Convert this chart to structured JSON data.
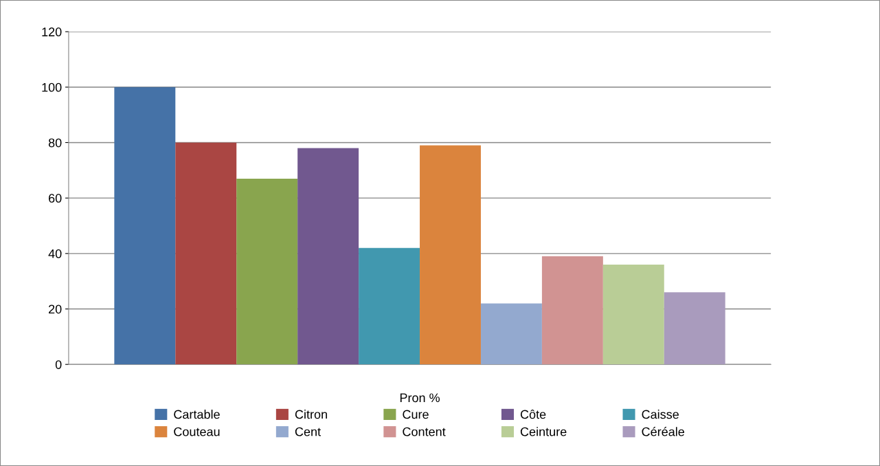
{
  "chart_data": {
    "type": "bar",
    "categories": [
      "Pron %"
    ],
    "series": [
      {
        "name": "Cartable",
        "color": "#4572a7",
        "values": [
          100
        ]
      },
      {
        "name": "Citron",
        "color": "#aa4643",
        "values": [
          80
        ]
      },
      {
        "name": "Cure",
        "color": "#89a54e",
        "values": [
          67
        ]
      },
      {
        "name": "Côte",
        "color": "#71588f",
        "values": [
          78
        ]
      },
      {
        "name": "Caisse",
        "color": "#4198af",
        "values": [
          42
        ]
      },
      {
        "name": "Couteau",
        "color": "#db843d",
        "values": [
          79
        ]
      },
      {
        "name": "Cent",
        "color": "#93a9cf",
        "values": [
          22
        ]
      },
      {
        "name": "Content",
        "color": "#d19392",
        "values": [
          39
        ]
      },
      {
        "name": "Ceinture",
        "color": "#b9cd96",
        "values": [
          36
        ]
      },
      {
        "name": "Céréale",
        "color": "#a99bbd",
        "values": [
          26
        ]
      }
    ],
    "ylim": [
      0,
      120
    ],
    "yticks": [
      0,
      20,
      40,
      60,
      80,
      100,
      120
    ],
    "grid": "y",
    "legend": "bottom"
  }
}
